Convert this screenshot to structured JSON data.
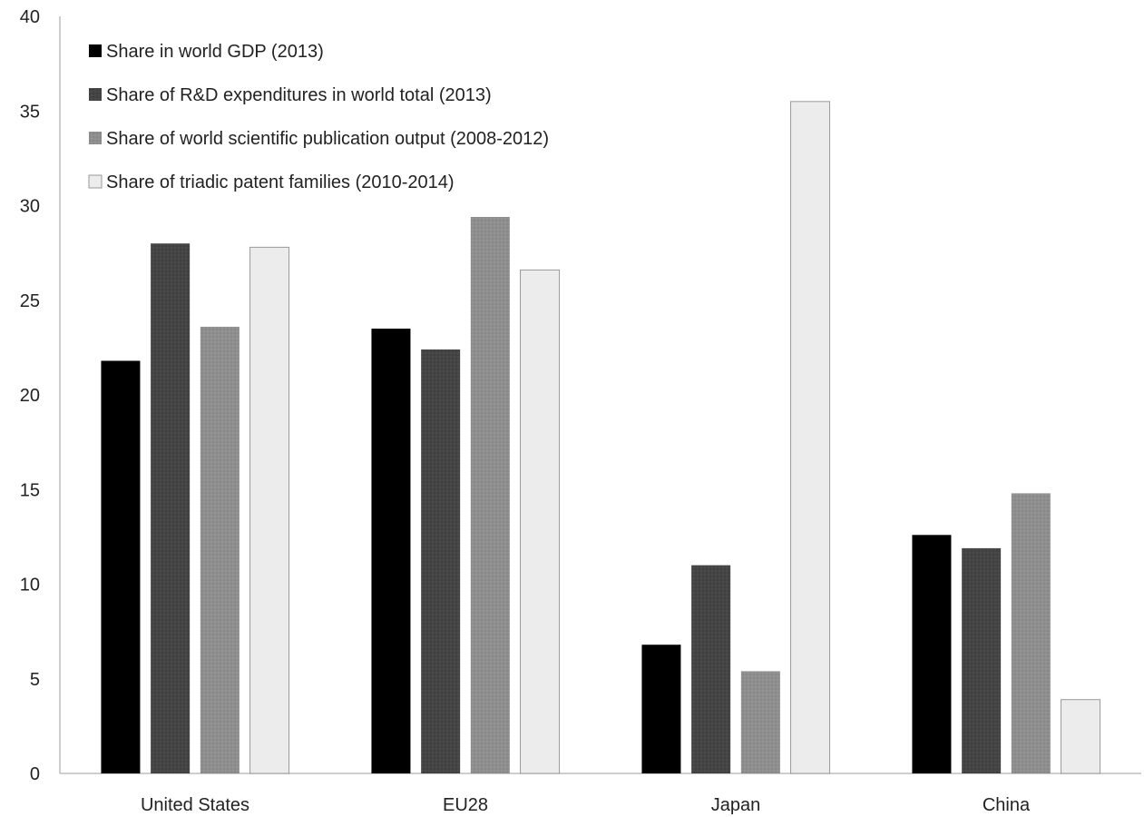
{
  "chart_data": {
    "type": "bar",
    "categories": [
      "United States",
      "EU28",
      "Japan",
      "China"
    ],
    "series": [
      {
        "name": "Share in world GDP (2013)",
        "values": [
          21.8,
          23.5,
          6.8,
          12.6
        ],
        "color": "#000000",
        "pattern": "none"
      },
      {
        "name": "Share of R&D expenditures in world total (2013)",
        "values": [
          28.0,
          22.4,
          11.0,
          11.9
        ],
        "color": "#444444",
        "pattern": "dots-dark"
      },
      {
        "name": "Share of world scientific publication output (2008-2012)",
        "values": [
          23.6,
          29.4,
          5.4,
          14.8
        ],
        "color": "#8e8e8e",
        "pattern": "dots-light"
      },
      {
        "name": "Share of triadic patent families (2010-2014)",
        "values": [
          27.8,
          26.6,
          35.5,
          3.9
        ],
        "color": "#ececec",
        "pattern": "none"
      }
    ],
    "y_ticks": [
      0,
      5,
      10,
      15,
      20,
      25,
      30,
      35,
      40
    ],
    "ylim": [
      0,
      40
    ],
    "grid": false,
    "legend_position": "top-left"
  }
}
